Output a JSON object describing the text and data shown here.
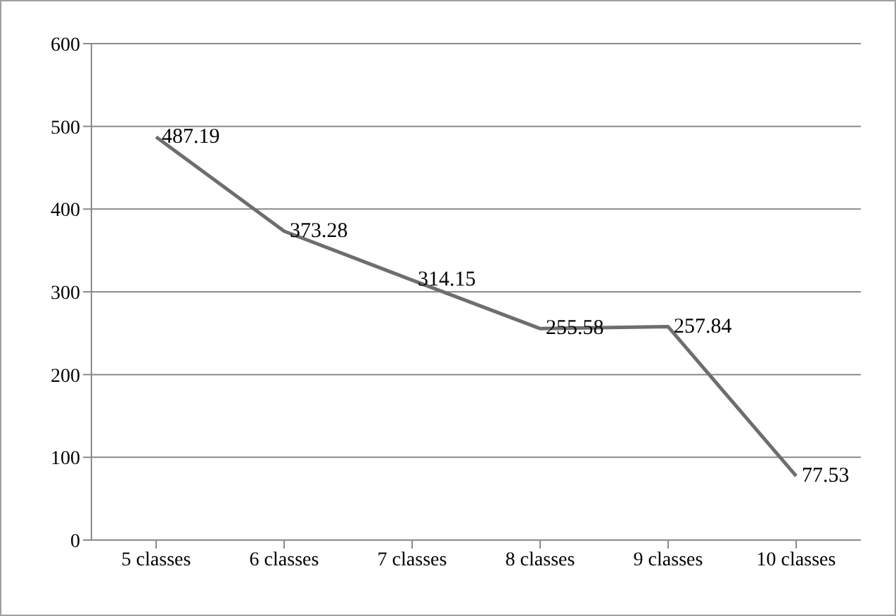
{
  "chart_data": {
    "type": "line",
    "categories": [
      "5 classes",
      "6 classes",
      "7 classes",
      "8 classes",
      "9 classes",
      "10 classes"
    ],
    "series": [
      {
        "color": "#6e6e6e",
        "values": [
          487.19,
          373.28,
          314.15,
          255.58,
          257.84,
          77.53
        ]
      }
    ],
    "ylim": [
      0,
      600
    ],
    "yticks": [
      0,
      100,
      200,
      300,
      400,
      500,
      600
    ],
    "grid": "y",
    "legend": false,
    "marker": "none",
    "line_style": "solid",
    "data_labels": true
  }
}
